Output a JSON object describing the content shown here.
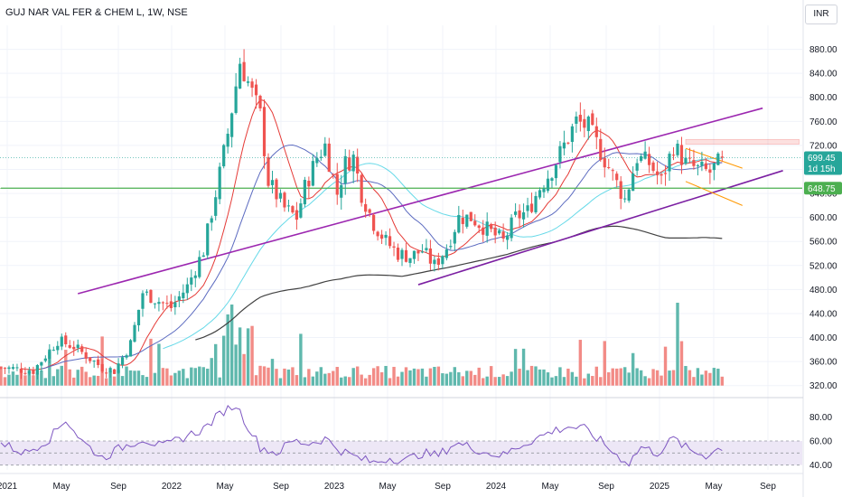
{
  "header": {
    "title": "GUJ NAR VAL FER & CHEM L, 1W, NSE",
    "currency": "INR"
  },
  "colors": {
    "up": "#26a69a",
    "down": "#ef5350",
    "vol_up": "#5fb8ad",
    "vol_down": "#f28b86",
    "channel": "#9c27b0",
    "channel_lower": "#7b1fa2",
    "sma_fast": "#e53935",
    "sma_mid": "#5c6bc0",
    "sma_slow": "#66d9e8",
    "sma_long": "#424242",
    "support": "#4caf50",
    "flag": "#ff9800",
    "rsi": "#7e57c2",
    "rsi_band": "#ede7f6"
  },
  "chart_data": [
    {
      "type": "candlestick",
      "title": "GUJ NAR VAL FER & CHEM L, 1W, NSE",
      "x": [
        "2021",
        "May",
        "Sep",
        "2022",
        "May",
        "Sep",
        "2023",
        "May",
        "Sep",
        "2024",
        "May",
        "Sep",
        "2025",
        "May",
        "Sep"
      ],
      "ylim": [
        300,
        920
      ],
      "yticks": [
        320,
        360,
        400,
        440,
        480,
        520,
        560,
        600,
        640,
        680,
        720,
        760,
        800,
        840,
        880
      ],
      "y_tick_labels": [
        "320.00",
        "360.00",
        "400.00",
        "440.00",
        "480.00",
        "520.00",
        "560.00",
        "600.00",
        "640.00",
        "",
        "720.00",
        "760.00",
        "800.00",
        "840.00",
        "880.00"
      ],
      "grid": true,
      "price_labels": [
        {
          "value": 699.45,
          "label": "699.45",
          "sublabel": "1d 15h",
          "color": "#26a69a"
        },
        {
          "value": 648.75,
          "label": "648.75",
          "color": "#4caf50"
        }
      ],
      "anchors": [
        [
          0,
          350
        ],
        [
          8,
          345
        ],
        [
          14,
          395
        ],
        [
          18,
          385
        ],
        [
          25,
          350
        ],
        [
          28,
          345
        ],
        [
          32,
          390
        ],
        [
          35,
          475
        ],
        [
          42,
          450
        ],
        [
          46,
          485
        ],
        [
          50,
          545
        ],
        [
          53,
          640
        ],
        [
          56,
          740
        ],
        [
          59,
          860
        ],
        [
          61,
          825
        ],
        [
          64,
          770
        ],
        [
          66,
          660
        ],
        [
          70,
          615
        ],
        [
          73,
          600
        ],
        [
          75,
          650
        ],
        [
          78,
          700
        ],
        [
          80,
          720
        ],
        [
          83,
          640
        ],
        [
          85,
          690
        ],
        [
          87,
          700
        ],
        [
          89,
          640
        ],
        [
          92,
          590
        ],
        [
          95,
          560
        ],
        [
          98,
          540
        ],
        [
          101,
          535
        ],
        [
          104,
          545
        ],
        [
          107,
          520
        ],
        [
          110,
          550
        ],
        [
          113,
          600
        ],
        [
          116,
          600
        ],
        [
          120,
          580
        ],
        [
          124,
          560
        ],
        [
          127,
          600
        ],
        [
          130,
          610
        ],
        [
          133,
          650
        ],
        [
          136,
          680
        ],
        [
          139,
          720
        ],
        [
          142,
          760
        ],
        [
          145,
          750
        ],
        [
          148,
          710
        ],
        [
          151,
          670
        ],
        [
          154,
          630
        ],
        [
          157,
          700
        ],
        [
          160,
          690
        ],
        [
          163,
          660
        ],
        [
          166,
          720
        ],
        [
          169,
          690
        ],
        [
          172,
          680
        ],
        [
          175,
          675
        ],
        [
          177,
          690
        ],
        [
          178,
          699.45
        ]
      ],
      "volume": {
        "baseline_value": 320,
        "peak_index": 167,
        "peak_value": 458
      },
      "overlays": [
        {
          "name": "channel-upper",
          "points": [
            [
              19,
              473
            ],
            [
              188,
              782
            ]
          ]
        },
        {
          "name": "channel-lower",
          "points": [
            [
              103,
              488
            ],
            [
              193,
              678
            ]
          ]
        },
        {
          "name": "support",
          "points": [
            [
              0,
              648.75
            ],
            [
              188,
              648.75
            ]
          ]
        },
        {
          "name": "flag-upper",
          "points": [
            [
              169,
              715
            ],
            [
              183,
              682
            ]
          ]
        },
        {
          "name": "flag-lower",
          "points": [
            [
              169,
              660
            ],
            [
              183,
              620
            ]
          ]
        },
        {
          "name": "resistance-zone",
          "points": [
            [
              169,
              722
            ],
            [
              197,
              730
            ]
          ]
        },
        {
          "name": "sma-long-end",
          "points": [
            [
              178,
              565
            ]
          ]
        }
      ]
    },
    {
      "type": "line",
      "name": "rsi",
      "ylim": [
        36,
        96
      ],
      "yticks": [
        40,
        60,
        80
      ],
      "y_tick_labels": [
        "40.00",
        "60.00",
        "80.00"
      ],
      "band": [
        40,
        60
      ],
      "points": [
        [
          0,
          58
        ],
        [
          6,
          50
        ],
        [
          12,
          62
        ],
        [
          16,
          78
        ],
        [
          20,
          60
        ],
        [
          25,
          46
        ],
        [
          30,
          55
        ],
        [
          35,
          62
        ],
        [
          40,
          55
        ],
        [
          45,
          63
        ],
        [
          50,
          70
        ],
        [
          55,
          85
        ],
        [
          58,
          90
        ],
        [
          60,
          78
        ],
        [
          64,
          55
        ],
        [
          68,
          50
        ],
        [
          72,
          60
        ],
        [
          76,
          58
        ],
        [
          80,
          62
        ],
        [
          84,
          52
        ],
        [
          88,
          46
        ],
        [
          92,
          42
        ],
        [
          96,
          46
        ],
        [
          100,
          44
        ],
        [
          104,
          50
        ],
        [
          108,
          48
        ],
        [
          112,
          58
        ],
        [
          116,
          55
        ],
        [
          120,
          50
        ],
        [
          124,
          48
        ],
        [
          128,
          56
        ],
        [
          132,
          62
        ],
        [
          136,
          68
        ],
        [
          140,
          72
        ],
        [
          144,
          70
        ],
        [
          148,
          60
        ],
        [
          152,
          48
        ],
        [
          155,
          42
        ],
        [
          158,
          55
        ],
        [
          162,
          50
        ],
        [
          166,
          62
        ],
        [
          170,
          52
        ],
        [
          174,
          48
        ],
        [
          178,
          55
        ]
      ]
    }
  ]
}
